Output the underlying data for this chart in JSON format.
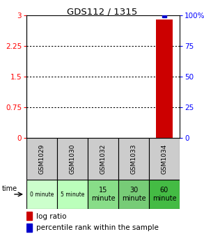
{
  "title": "GDS112 / 1315",
  "samples": [
    "GSM1029",
    "GSM1030",
    "GSM1032",
    "GSM1033",
    "GSM1034"
  ],
  "time_labels": [
    "0 minute",
    "5 minute",
    "15\nminute",
    "30\nminute",
    "60\nminute"
  ],
  "time_colors": [
    "#ccffcc",
    "#bbffbb",
    "#88dd88",
    "#77cc77",
    "#44bb44"
  ],
  "gsm_bg": "#cccccc",
  "bar_index": 4,
  "log_ratio": 2.9,
  "percentile": 100,
  "ylim_left": [
    0,
    3
  ],
  "ylim_right": [
    0,
    100
  ],
  "yticks_left": [
    0,
    0.75,
    1.5,
    2.25,
    3
  ],
  "yticks_right": [
    0,
    25,
    50,
    75,
    100
  ],
  "bar_color": "#cc0000",
  "dot_color": "#0000cc",
  "legend_log_color": "#cc0000",
  "legend_pct_color": "#0000cc",
  "time_label": "time",
  "legend1": "log ratio",
  "legend2": "percentile rank within the sample",
  "n_samples": 5
}
